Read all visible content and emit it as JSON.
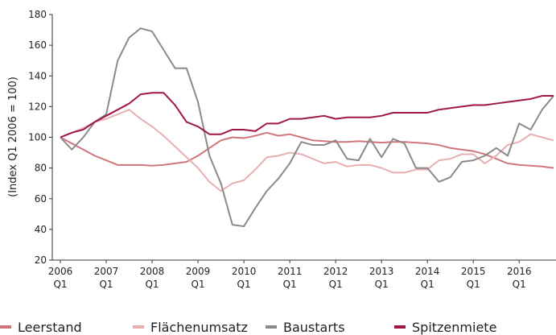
{
  "chart_data": {
    "type": "line",
    "y_label": "(Index Q1 2006 = 100)",
    "categories": [
      "2006 Q1",
      null,
      null,
      null,
      "2007 Q1",
      null,
      null,
      null,
      "2008 Q1",
      null,
      null,
      null,
      "2009 Q1",
      null,
      null,
      null,
      "2010 Q1",
      null,
      null,
      null,
      "2011 Q1",
      null,
      null,
      null,
      "2012 Q1",
      null,
      null,
      null,
      "2013 Q1",
      null,
      null,
      null,
      "2014 Q1",
      null,
      null,
      null,
      "2015 Q1",
      null,
      null,
      null,
      "2016 Q1",
      null,
      null,
      null
    ],
    "series": [
      {
        "name": "Leerstand",
        "color": "#d0757a",
        "values": [
          100,
          96,
          92,
          88,
          85,
          82,
          82,
          82,
          81.5,
          82,
          83,
          84,
          88,
          93,
          98,
          100,
          99.5,
          101,
          103,
          101,
          102,
          100,
          98,
          97.5,
          97,
          97,
          97.5,
          97,
          96.5,
          97,
          97,
          96.5,
          96,
          95,
          93,
          92,
          91,
          89,
          86,
          83,
          82,
          81.5,
          81,
          80
        ]
      },
      {
        "name": "Flächenumsatz",
        "color": "#e8aeb0",
        "values": [
          100,
          103,
          106,
          110,
          112,
          115,
          118,
          112,
          107,
          101,
          94,
          87,
          80,
          71,
          65,
          70,
          72,
          79,
          87,
          88,
          90,
          89,
          86,
          83,
          84,
          81,
          82,
          82,
          80,
          77,
          77,
          79,
          79,
          85,
          86,
          89,
          89,
          83,
          88,
          95,
          97,
          102,
          100,
          98
        ]
      },
      {
        "name": "Baustarts",
        "color": "#8a8a8a",
        "values": [
          100,
          92,
          100,
          110,
          115,
          150,
          165,
          171,
          169,
          157,
          145,
          145,
          123,
          88,
          70,
          43,
          42,
          54,
          65,
          73,
          83,
          97,
          95,
          95,
          98,
          86,
          85,
          99,
          87,
          99,
          96,
          80,
          80,
          71,
          74,
          84,
          85,
          88,
          93,
          88,
          109,
          105,
          118,
          127
        ]
      },
      {
        "name": "Spitzenmiete",
        "color": "#a0174a",
        "values": [
          100,
          103,
          105,
          110,
          114,
          118,
          122,
          128,
          129,
          129,
          121,
          110,
          107,
          102,
          102,
          105,
          105,
          104,
          109,
          109,
          112,
          112,
          113,
          114,
          112,
          113,
          113,
          113,
          114,
          116,
          116,
          116,
          116,
          118,
          119,
          120,
          121,
          121,
          122,
          123,
          124,
          125,
          127,
          127
        ]
      }
    ],
    "ylim": [
      20,
      180
    ],
    "yticks": [
      20,
      40,
      60,
      80,
      100,
      120,
      140,
      160,
      180
    ],
    "grid": false
  }
}
